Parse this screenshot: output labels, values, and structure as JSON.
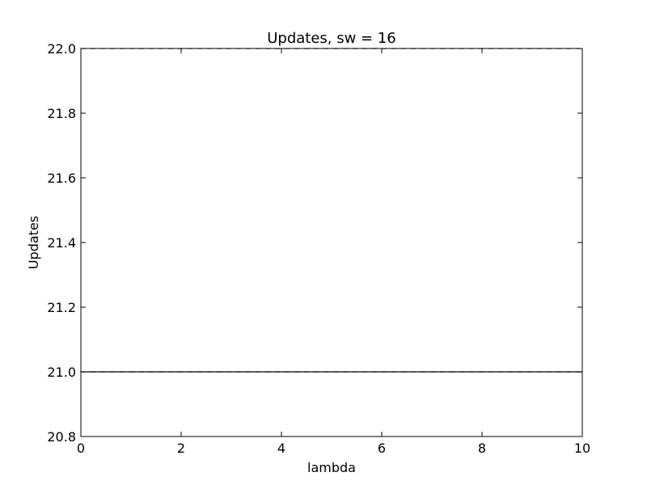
{
  "chart_data": {
    "type": "line",
    "title": "Updates, sw = 16",
    "xlabel": "lambda",
    "ylabel": "Updates",
    "xlim": [
      0,
      10
    ],
    "ylim": [
      20.8,
      22.0
    ],
    "x_ticks": [
      "0",
      "2",
      "4",
      "6",
      "8",
      "10"
    ],
    "y_ticks": [
      "20.8",
      "21.0",
      "21.2",
      "21.4",
      "21.6",
      "21.8",
      "22.0"
    ],
    "grid": false,
    "legend": "none",
    "series": [
      {
        "x": [
          0,
          10
        ],
        "y": [
          22,
          22
        ],
        "style": "dashed",
        "color": "#5a1a3a"
      },
      {
        "x": [
          0,
          10
        ],
        "y": [
          21,
          21
        ],
        "style": "dashed",
        "color": "#8a2a5a"
      },
      {
        "x": [
          0,
          10
        ],
        "y": [
          21,
          21
        ],
        "style": "solid",
        "color": "#000000"
      }
    ]
  }
}
